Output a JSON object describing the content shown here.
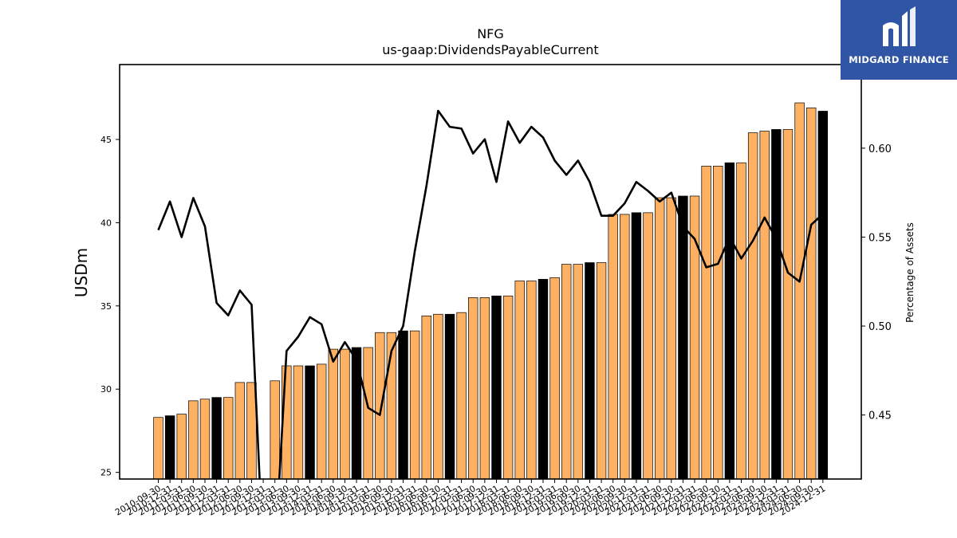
{
  "chart_data": {
    "type": "bar",
    "title": "NFG",
    "subtitle": "us-gaap:DividendsPayableCurrent",
    "ylabel": "USDm",
    "y2label": "Percentage of Assets",
    "ylim": [
      24.6,
      49.5
    ],
    "y2lim": [
      0.414,
      0.647
    ],
    "yticks": [
      25,
      30,
      35,
      40,
      45
    ],
    "y2ticks": [
      "0.45",
      "0.50",
      "0.55",
      "0.60"
    ],
    "grid": false,
    "colors": {
      "bar": "#ffb163",
      "highlight_bar": "#000000",
      "line": "#000000"
    },
    "categories": [
      "2010-09-30",
      "2010-12-31",
      "2011-03-31",
      "2011-06-30",
      "2011-09-30",
      "2011-12-31",
      "2012-03-31",
      "2012-06-30",
      "2012-09-30",
      "2012-12-31",
      "2013-03-31",
      "2013-06-30",
      "2013-09-30",
      "2013-12-31",
      "2014-03-31",
      "2014-06-30",
      "2014-09-30",
      "2014-12-31",
      "2015-03-31",
      "2015-06-30",
      "2015-09-30",
      "2015-12-31",
      "2016-03-31",
      "2016-06-30",
      "2016-09-30",
      "2016-12-31",
      "2017-03-31",
      "2017-06-30",
      "2017-09-30",
      "2017-12-31",
      "2018-03-31",
      "2018-06-30",
      "2018-09-30",
      "2018-12-31",
      "2019-03-31",
      "2019-06-30",
      "2019-09-30",
      "2019-12-31",
      "2020-03-31",
      "2020-06-30",
      "2020-09-30",
      "2020-12-31",
      "2021-03-31",
      "2021-06-30",
      "2021-09-30",
      "2021-12-31",
      "2022-03-31",
      "2022-06-30",
      "2022-09-30",
      "2022-12-31",
      "2023-03-31",
      "2023-06-30",
      "2023-09-30",
      "2023-12-31",
      "2024-03-31",
      "2024-06-30",
      "2024-09-30",
      "2024-12-31"
    ],
    "series": [
      {
        "kind": "bar",
        "values": [
          28.3,
          28.4,
          28.5,
          29.3,
          29.4,
          29.5,
          29.5,
          30.4,
          30.4,
          null,
          30.5,
          31.4,
          31.4,
          31.4,
          31.5,
          32.4,
          32.4,
          32.5,
          32.5,
          33.4,
          33.4,
          33.5,
          33.5,
          34.4,
          34.5,
          34.5,
          34.6,
          35.5,
          35.5,
          35.6,
          35.6,
          36.5,
          36.5,
          36.6,
          36.7,
          37.5,
          37.5,
          37.6,
          37.6,
          40.5,
          40.5,
          40.6,
          40.6,
          41.5,
          41.5,
          41.6,
          41.6,
          43.4,
          43.4,
          43.6,
          43.6,
          45.4,
          45.5,
          45.6,
          45.6,
          47.2,
          46.9,
          46.7
        ],
        "highlight": [
          false,
          true,
          false,
          false,
          false,
          true,
          false,
          false,
          false,
          false,
          false,
          false,
          false,
          true,
          false,
          false,
          false,
          true,
          false,
          false,
          false,
          true,
          false,
          false,
          false,
          true,
          false,
          false,
          false,
          true,
          false,
          false,
          false,
          true,
          false,
          false,
          false,
          true,
          false,
          false,
          false,
          true,
          false,
          false,
          false,
          true,
          false,
          false,
          false,
          true,
          false,
          false,
          false,
          true,
          false,
          false,
          false,
          true
        ]
      },
      {
        "kind": "line",
        "axis": "right",
        "values": [
          0.554,
          0.57,
          0.55,
          0.572,
          0.556,
          0.513,
          0.506,
          0.52,
          0.512,
          0.37,
          0.37,
          0.486,
          0.494,
          0.505,
          0.501,
          0.48,
          0.491,
          0.481,
          0.454,
          0.45,
          0.486,
          0.5,
          0.542,
          0.579,
          0.621,
          0.612,
          0.611,
          0.597,
          0.605,
          0.581,
          0.615,
          0.603,
          0.612,
          0.606,
          0.593,
          0.585,
          0.593,
          0.581,
          0.562,
          0.562,
          0.569,
          0.581,
          0.576,
          0.57,
          0.575,
          0.556,
          0.549,
          0.533,
          0.535,
          0.55,
          0.538,
          0.548,
          0.561,
          0.549,
          0.53,
          0.525,
          0.557,
          0.563
        ]
      }
    ]
  }
}
